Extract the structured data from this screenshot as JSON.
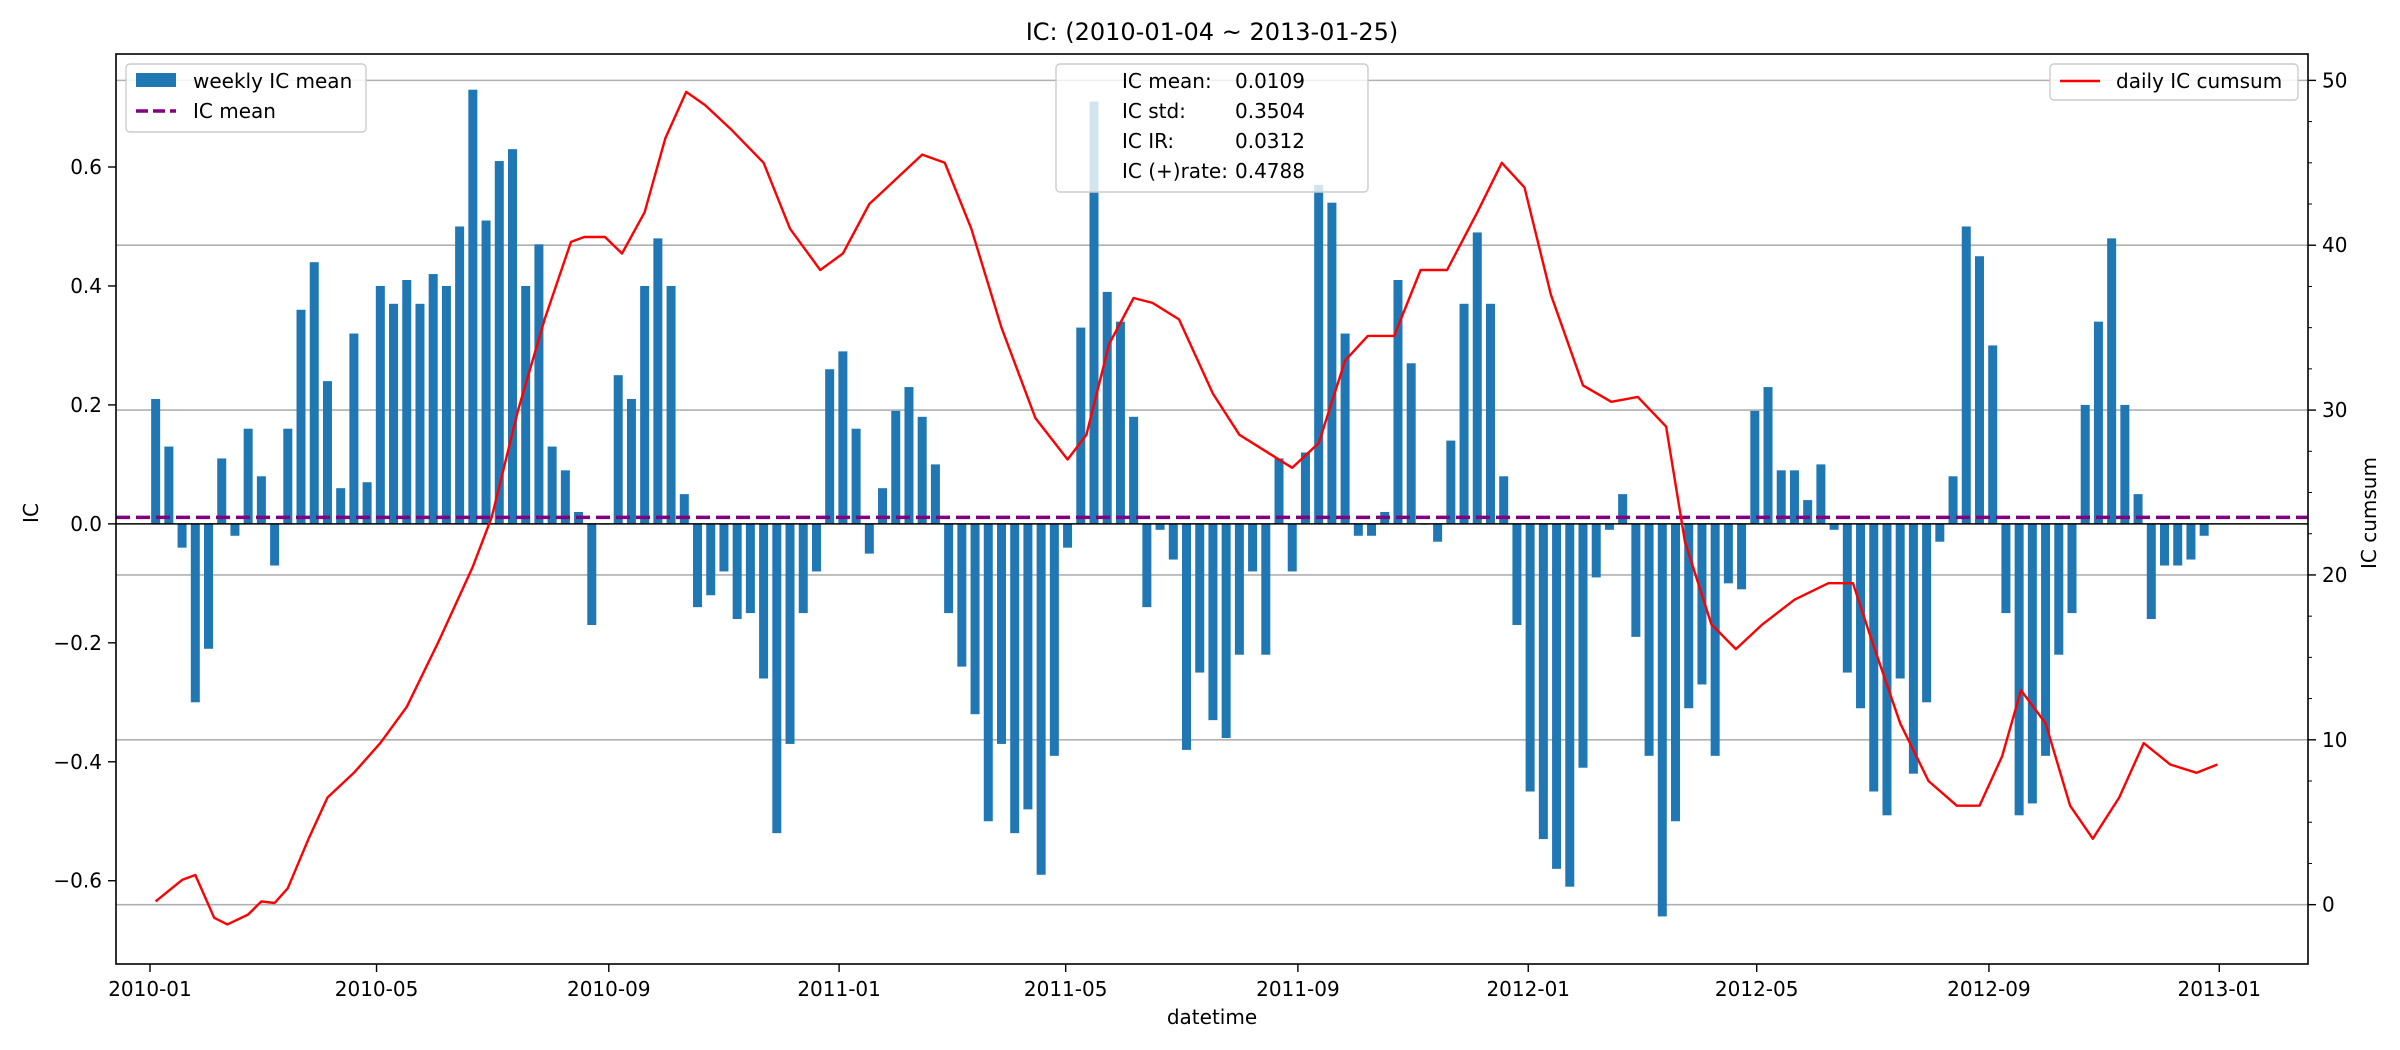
{
  "chart_data": {
    "type": "bar",
    "title": "IC: (2010-01-04 ~ 2013-01-25)",
    "xlabel": "datetime",
    "ylabel": "IC",
    "ylabel_right": "IC cumsum",
    "ylim": [
      -0.74,
      0.79
    ],
    "ylim_right": [
      -3.6,
      51.6
    ],
    "xlim": [
      "2009-12-14",
      "2013-02-17"
    ],
    "x_ticks": [
      "2010-01-01",
      "2010-05-01",
      "2010-09-01",
      "2011-01-01",
      "2011-05-01",
      "2011-09-01",
      "2012-01-01",
      "2012-05-01",
      "2012-09-01",
      "2013-01-01"
    ],
    "x_tick_labels": [
      "2010-01",
      "2010-05",
      "2010-09",
      "2011-01",
      "2011-05",
      "2011-09",
      "2012-01",
      "2012-05",
      "2012-09",
      "2013-01"
    ],
    "y_ticks": [
      -0.6,
      -0.4,
      -0.2,
      0.0,
      0.2,
      0.4,
      0.6
    ],
    "y_tick_labels": [
      "−0.6",
      "−0.4",
      "−0.2",
      "0.0",
      "0.2",
      "0.4",
      "0.6"
    ],
    "y_ticks_right": [
      0,
      10,
      20,
      30,
      40,
      50
    ],
    "y_tick_labels_right": [
      "0",
      "10",
      "20",
      "30",
      "40",
      "50"
    ],
    "grid": "horizontal, right axis",
    "legend_left": "top-left",
    "legend_right": "top-right",
    "colors": {
      "bars": "#1f77b4",
      "mean_line": "#800080",
      "cumsum": "#ff0000",
      "grid": "#b0b0b0"
    },
    "series": [
      {
        "name": "weekly IC mean",
        "kind": "bar",
        "x": [
          "2010-01-04",
          "2010-01-11",
          "2010-01-18",
          "2010-01-25",
          "2010-02-01",
          "2010-02-08",
          "2010-02-15",
          "2010-02-22",
          "2010-03-01",
          "2010-03-08",
          "2010-03-15",
          "2010-03-22",
          "2010-03-29",
          "2010-04-05",
          "2010-04-12",
          "2010-04-19",
          "2010-04-26",
          "2010-05-03",
          "2010-05-10",
          "2010-05-17",
          "2010-05-24",
          "2010-05-31",
          "2010-06-07",
          "2010-06-14",
          "2010-06-21",
          "2010-06-28",
          "2010-07-05",
          "2010-07-12",
          "2010-07-19",
          "2010-07-26",
          "2010-08-02",
          "2010-08-09",
          "2010-08-16",
          "2010-08-23",
          "2010-08-30",
          "2010-09-06",
          "2010-09-13",
          "2010-09-20",
          "2010-09-27",
          "2010-10-04",
          "2010-10-11",
          "2010-10-18",
          "2010-10-25",
          "2010-11-01",
          "2010-11-08",
          "2010-11-15",
          "2010-11-22",
          "2010-11-29",
          "2010-12-06",
          "2010-12-13",
          "2010-12-20",
          "2010-12-27",
          "2011-01-03",
          "2011-01-10",
          "2011-01-17",
          "2011-01-24",
          "2011-01-31",
          "2011-02-07",
          "2011-02-14",
          "2011-02-21",
          "2011-02-28",
          "2011-03-07",
          "2011-03-14",
          "2011-03-21",
          "2011-03-28",
          "2011-04-04",
          "2011-04-11",
          "2011-04-18",
          "2011-04-25",
          "2011-05-02",
          "2011-05-09",
          "2011-05-16",
          "2011-05-23",
          "2011-05-30",
          "2011-06-06",
          "2011-06-13",
          "2011-06-20",
          "2011-06-27",
          "2011-07-04",
          "2011-07-11",
          "2011-07-18",
          "2011-07-25",
          "2011-08-01",
          "2011-08-08",
          "2011-08-15",
          "2011-08-22",
          "2011-08-29",
          "2011-09-05",
          "2011-09-12",
          "2011-09-19",
          "2011-09-26",
          "2011-10-03",
          "2011-10-10",
          "2011-10-17",
          "2011-10-24",
          "2011-10-31",
          "2011-11-07",
          "2011-11-14",
          "2011-11-21",
          "2011-11-28",
          "2011-12-05",
          "2011-12-12",
          "2011-12-19",
          "2011-12-26",
          "2012-01-02",
          "2012-01-09",
          "2012-01-16",
          "2012-01-23",
          "2012-01-30",
          "2012-02-06",
          "2012-02-13",
          "2012-02-20",
          "2012-02-27",
          "2012-03-05",
          "2012-03-12",
          "2012-03-19",
          "2012-03-26",
          "2012-04-02",
          "2012-04-09",
          "2012-04-16",
          "2012-04-23",
          "2012-04-30",
          "2012-05-07",
          "2012-05-14",
          "2012-05-21",
          "2012-05-28",
          "2012-06-04",
          "2012-06-11",
          "2012-06-18",
          "2012-06-25",
          "2012-07-02",
          "2012-07-09",
          "2012-07-16",
          "2012-07-23",
          "2012-07-30",
          "2012-08-06",
          "2012-08-13",
          "2012-08-20",
          "2012-08-27",
          "2012-09-03",
          "2012-09-10",
          "2012-09-17",
          "2012-09-24",
          "2012-10-01",
          "2012-10-08",
          "2012-10-15",
          "2012-10-22",
          "2012-10-29",
          "2012-11-05",
          "2012-11-12",
          "2012-11-19",
          "2012-11-26",
          "2012-12-03",
          "2012-12-10",
          "2012-12-17",
          "2012-12-24"
        ],
        "values": [
          0.21,
          0.13,
          -0.04,
          -0.3,
          -0.21,
          0.11,
          -0.02,
          0.16,
          0.08,
          -0.07,
          0.16,
          0.36,
          0.44,
          0.24,
          0.06,
          0.32,
          0.07,
          0.4,
          0.37,
          0.41,
          0.37,
          0.42,
          0.4,
          0.5,
          0.73,
          0.51,
          0.61,
          0.63,
          0.4,
          0.47,
          0.13,
          0.09,
          0.02,
          -0.17,
          0.0,
          0.25,
          0.21,
          0.4,
          0.48,
          0.4,
          0.05,
          -0.14,
          -0.12,
          -0.08,
          -0.16,
          -0.15,
          -0.26,
          -0.52,
          -0.37,
          -0.15,
          -0.08,
          0.26,
          0.29,
          0.16,
          -0.05,
          0.06,
          0.19,
          0.23,
          0.18,
          0.1,
          -0.15,
          -0.24,
          -0.32,
          -0.5,
          -0.37,
          -0.52,
          -0.48,
          -0.59,
          -0.39,
          -0.04,
          0.33,
          0.71,
          0.39,
          0.34,
          0.18,
          -0.14,
          -0.01,
          -0.06,
          -0.38,
          -0.25,
          -0.33,
          -0.36,
          -0.22,
          -0.08,
          -0.22,
          0.11,
          -0.08,
          0.12,
          0.57,
          0.54,
          0.32,
          -0.02,
          -0.02,
          0.02,
          0.41,
          0.27,
          0.0,
          -0.03,
          0.14,
          0.37,
          0.49,
          0.37,
          0.08,
          -0.17,
          -0.45,
          -0.53,
          -0.58,
          -0.61,
          -0.41,
          -0.09,
          -0.01,
          0.05,
          -0.19,
          -0.39,
          -0.66,
          -0.5,
          -0.31,
          -0.27,
          -0.39,
          -0.1,
          -0.11,
          0.19,
          0.23,
          0.09,
          0.09,
          0.04,
          0.1,
          -0.01,
          -0.25,
          -0.31,
          -0.45,
          -0.49,
          -0.26,
          -0.42,
          -0.3,
          -0.03,
          0.08,
          0.5,
          0.45,
          0.3,
          -0.15,
          -0.49,
          -0.47,
          -0.39,
          -0.22,
          -0.15,
          0.2,
          0.34,
          0.48,
          0.2,
          0.05,
          -0.16,
          -0.07,
          -0.07,
          -0.06,
          -0.02
        ]
      },
      {
        "name": "IC mean",
        "kind": "hline",
        "value": 0.0109
      },
      {
        "name": "daily IC cumsum",
        "kind": "line",
        "axis": "right",
        "x": [
          "2010-01-04",
          "2010-01-18",
          "2010-01-25",
          "2010-02-04",
          "2010-02-11",
          "2010-02-22",
          "2010-03-01",
          "2010-03-08",
          "2010-03-15",
          "2010-03-26",
          "2010-04-05",
          "2010-04-19",
          "2010-05-03",
          "2010-05-17",
          "2010-06-03",
          "2010-06-21",
          "2010-07-01",
          "2010-07-15",
          "2010-07-29",
          "2010-08-12",
          "2010-08-19",
          "2010-08-30",
          "2010-09-08",
          "2010-09-20",
          "2010-10-01",
          "2010-10-12",
          "2010-10-22",
          "2010-11-05",
          "2010-11-22",
          "2010-12-06",
          "2010-12-22",
          "2011-01-03",
          "2011-01-17",
          "2011-01-31",
          "2011-02-14",
          "2011-02-26",
          "2011-03-12",
          "2011-03-28",
          "2011-04-15",
          "2011-05-02",
          "2011-05-12",
          "2011-05-24",
          "2011-06-06",
          "2011-06-16",
          "2011-06-30",
          "2011-07-18",
          "2011-08-01",
          "2011-08-15",
          "2011-08-29",
          "2011-09-12",
          "2011-09-26",
          "2011-10-08",
          "2011-10-22",
          "2011-11-05",
          "2011-11-19",
          "2011-12-05",
          "2011-12-18",
          "2011-12-30",
          "2012-01-13",
          "2012-01-30",
          "2012-02-14",
          "2012-02-28",
          "2012-03-14",
          "2012-03-24",
          "2012-04-07",
          "2012-04-20",
          "2012-05-04",
          "2012-05-21",
          "2012-06-08",
          "2012-06-21",
          "2012-07-01",
          "2012-07-16",
          "2012-07-31",
          "2012-08-15",
          "2012-08-27",
          "2012-09-08",
          "2012-09-18",
          "2012-10-01",
          "2012-10-14",
          "2012-10-26",
          "2012-11-09",
          "2012-11-22",
          "2012-12-06",
          "2012-12-20",
          "2012-12-31"
        ],
        "values": [
          0.2,
          1.5,
          1.8,
          -0.8,
          -1.2,
          -0.6,
          0.2,
          0.1,
          1.0,
          4.0,
          6.5,
          8.0,
          9.8,
          12.0,
          16.0,
          20.5,
          23.5,
          30.0,
          35.5,
          40.2,
          40.5,
          40.5,
          39.5,
          42.0,
          46.5,
          49.3,
          48.5,
          47.0,
          45.0,
          41.0,
          38.5,
          39.5,
          42.5,
          44.0,
          45.5,
          45.0,
          41.0,
          35.0,
          29.5,
          27.0,
          28.5,
          34.0,
          36.8,
          36.5,
          35.5,
          31.0,
          28.5,
          27.5,
          26.5,
          28.0,
          33.0,
          34.5,
          34.5,
          38.5,
          38.5,
          42.0,
          45.0,
          43.5,
          37.0,
          31.5,
          30.5,
          30.8,
          29.0,
          22.0,
          17.0,
          15.5,
          17.0,
          18.5,
          19.5,
          19.5,
          16.0,
          11.0,
          7.5,
          6.0,
          6.0,
          9.0,
          13.0,
          11.0,
          6.0,
          4.0,
          6.5,
          9.8,
          8.5,
          8.0,
          8.5
        ]
      }
    ],
    "stats": [
      {
        "label": "IC mean:",
        "value": "0.0109"
      },
      {
        "label": "IC std:",
        "value": "0.3504"
      },
      {
        "label": "IC IR:",
        "value": "0.0312"
      },
      {
        "label": "IC (+)rate:",
        "value": "0.4788"
      }
    ]
  }
}
